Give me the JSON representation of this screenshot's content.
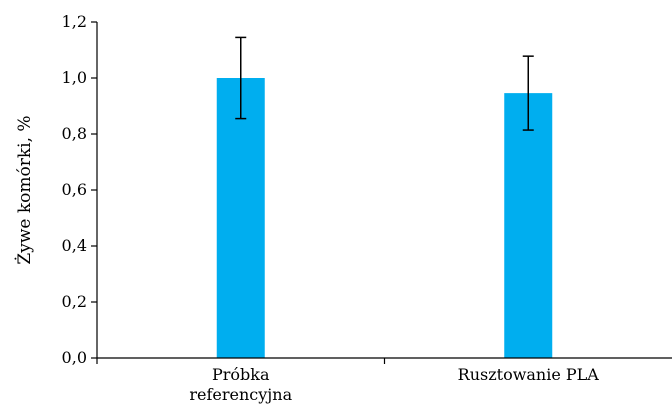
{
  "chart_data": {
    "type": "bar",
    "title": "",
    "xlabel": "",
    "ylabel": "Żywe komórki, %",
    "categories": [
      [
        "Próbka",
        "referencyjna"
      ],
      [
        "Rusztowanie PLA"
      ]
    ],
    "values": [
      1.0,
      0.946
    ],
    "errors": [
      0.145,
      0.132
    ],
    "ylim": [
      0,
      1.2
    ],
    "yticks": [
      0,
      0.2,
      0.4,
      0.6,
      0.8,
      1.0,
      1.2
    ],
    "ytick_labels": [
      "0,0",
      "0,2",
      "0,4",
      "0,6",
      "0,8",
      "1,0",
      "1,2"
    ],
    "grid": false,
    "legend": "none",
    "bar_color": "#00AEEF",
    "error_color": "#000000",
    "axis_color": "#000000"
  }
}
